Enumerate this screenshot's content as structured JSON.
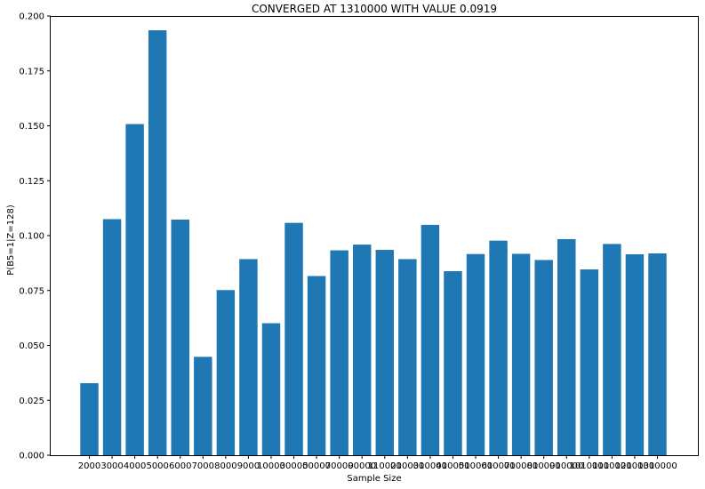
{
  "chart_data": {
    "type": "bar",
    "title": "CONVERGED AT 1310000 WITH VALUE 0.0919",
    "xlabel": "Sample Size",
    "ylabel": "P(B5=1|Z=128)",
    "categories": [
      "2000",
      "3000",
      "4000",
      "5000",
      "6000",
      "7000",
      "8000",
      "9000",
      "10000",
      "30000",
      "50000",
      "70000",
      "90000",
      "110000",
      "210000",
      "310000",
      "410000",
      "510000",
      "610000",
      "710000",
      "810000",
      "910000",
      "1010000",
      "1110000",
      "1210000",
      "1310000"
    ],
    "values": [
      0.0328,
      0.1075,
      0.1508,
      0.1935,
      0.1073,
      0.0448,
      0.0752,
      0.0893,
      0.0601,
      0.1058,
      0.0816,
      0.0933,
      0.0959,
      0.0935,
      0.0893,
      0.1049,
      0.0838,
      0.0916,
      0.0977,
      0.0917,
      0.0889,
      0.0984,
      0.0846,
      0.0962,
      0.0915,
      0.0919
    ],
    "ylim": [
      0,
      0.2
    ],
    "yticks": [
      "0.000",
      "0.025",
      "0.050",
      "0.075",
      "0.100",
      "0.125",
      "0.150",
      "0.175",
      "0.200"
    ],
    "bar_color": "#1f77b4",
    "grid": false
  }
}
